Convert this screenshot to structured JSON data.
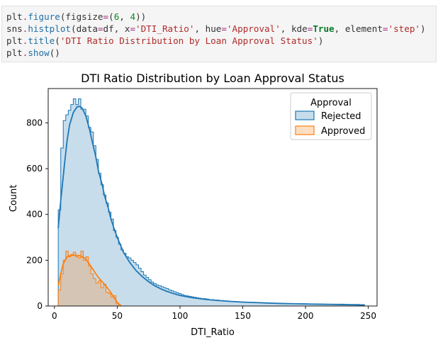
{
  "code_cell": {
    "lines": [
      [
        {
          "t": "plt",
          "c": "obj"
        },
        {
          "t": ".",
          "c": "op"
        },
        {
          "t": "figure",
          "c": "fn"
        },
        {
          "t": "(figsize",
          "c": "plain"
        },
        {
          "t": "=",
          "c": "op"
        },
        {
          "t": "(",
          "c": "plain"
        },
        {
          "t": "6",
          "c": "num"
        },
        {
          "t": ", ",
          "c": "plain"
        },
        {
          "t": "4",
          "c": "num"
        },
        {
          "t": "))",
          "c": "plain"
        }
      ],
      [
        {
          "t": "sns",
          "c": "obj"
        },
        {
          "t": ".",
          "c": "op"
        },
        {
          "t": "histplot",
          "c": "fn"
        },
        {
          "t": "(data",
          "c": "plain"
        },
        {
          "t": "=",
          "c": "op"
        },
        {
          "t": "df, x",
          "c": "plain"
        },
        {
          "t": "=",
          "c": "op"
        },
        {
          "t": "'DTI_Ratio'",
          "c": "str"
        },
        {
          "t": ", hue",
          "c": "plain"
        },
        {
          "t": "=",
          "c": "op"
        },
        {
          "t": "'Approval'",
          "c": "str"
        },
        {
          "t": ", kde",
          "c": "plain"
        },
        {
          "t": "=",
          "c": "op"
        },
        {
          "t": "True",
          "c": "kw"
        },
        {
          "t": ", element",
          "c": "plain"
        },
        {
          "t": "=",
          "c": "op"
        },
        {
          "t": "'step'",
          "c": "str"
        },
        {
          "t": ")",
          "c": "plain"
        }
      ],
      [
        {
          "t": "plt",
          "c": "obj"
        },
        {
          "t": ".",
          "c": "op"
        },
        {
          "t": "title",
          "c": "fn"
        },
        {
          "t": "(",
          "c": "plain"
        },
        {
          "t": "'DTI Ratio Distribution by Loan Approval Status'",
          "c": "str"
        },
        {
          "t": ")",
          "c": "plain"
        }
      ],
      [
        {
          "t": "plt",
          "c": "obj"
        },
        {
          "t": ".",
          "c": "op"
        },
        {
          "t": "show",
          "c": "fn"
        },
        {
          "t": "()",
          "c": "plain"
        }
      ]
    ]
  },
  "colors": {
    "code_obj": "#333333",
    "code_op": "#a2227a",
    "code_fn": "#1f6fa5",
    "code_num": "#0a8a1a",
    "code_str": "#b12a2a",
    "code_kw": "#0a7a2a",
    "rejected": "#1f77b4",
    "approved": "#ff7f0e"
  },
  "chart_data": {
    "type": "histogram",
    "title": "DTI Ratio Distribution by Loan Approval Status",
    "xlabel": "DTI_Ratio",
    "ylabel": "Count",
    "xlim": [
      -5,
      257
    ],
    "ylim": [
      0,
      950
    ],
    "xticks": [
      0,
      50,
      100,
      150,
      200,
      250
    ],
    "yticks": [
      0,
      200,
      400,
      600,
      800
    ],
    "grid": false,
    "legend": {
      "title": "Approval",
      "placement": "top-right"
    },
    "element": "step",
    "series": [
      {
        "name": "Rejected",
        "color": "#1f77b4",
        "bin_edges": [
          3,
          5,
          7,
          9,
          11,
          13,
          15,
          17,
          19,
          21,
          23,
          25,
          27,
          29,
          31,
          33,
          35,
          37,
          39,
          41,
          43,
          45,
          47,
          49,
          51,
          53,
          55,
          57,
          59,
          61,
          63,
          65,
          67,
          69,
          71,
          73,
          75,
          77,
          79,
          81,
          83,
          85,
          87,
          89,
          91,
          93,
          95,
          97,
          99,
          101,
          103,
          105,
          107,
          109,
          111,
          113,
          115,
          117,
          119,
          121,
          123,
          125,
          127,
          129,
          131,
          133,
          135,
          137,
          139,
          141,
          143,
          145,
          147,
          149,
          151,
          153,
          155,
          157,
          159,
          161,
          163,
          165,
          167,
          169,
          171,
          173,
          175,
          177,
          179,
          181,
          183,
          185,
          187,
          189,
          191,
          193,
          195,
          197,
          199,
          201,
          203,
          205,
          207,
          209,
          211,
          213,
          215,
          217,
          219,
          221,
          223,
          225,
          227,
          229,
          231,
          233,
          235,
          237,
          239,
          241,
          243,
          245,
          247
        ],
        "counts": [
          420,
          690,
          810,
          835,
          855,
          880,
          905,
          880,
          905,
          860,
          860,
          830,
          780,
          760,
          700,
          640,
          580,
          530,
          485,
          450,
          410,
          380,
          330,
          300,
          270,
          245,
          230,
          215,
          210,
          200,
          190,
          180,
          165,
          150,
          135,
          125,
          115,
          105,
          98,
          92,
          88,
          84,
          80,
          76,
          70,
          66,
          62,
          58,
          54,
          50,
          46,
          44,
          42,
          40,
          38,
          36,
          34,
          32,
          32,
          30,
          28,
          28,
          26,
          26,
          24,
          24,
          22,
          22,
          20,
          20,
          20,
          19,
          18,
          18,
          17,
          17,
          16,
          16,
          15,
          15,
          14,
          14,
          14,
          13,
          13,
          12,
          12,
          12,
          12,
          11,
          11,
          11,
          11,
          10,
          10,
          10,
          10,
          10,
          10,
          9,
          9,
          9,
          9,
          9,
          9,
          8,
          8,
          8,
          8,
          8,
          8,
          8,
          8,
          8,
          7,
          7,
          7,
          7,
          7,
          7,
          6,
          6
        ],
        "kde_x": [
          3,
          5,
          8,
          10,
          12,
          15,
          18,
          20,
          22,
          25,
          28,
          30,
          33,
          35,
          38,
          40,
          43,
          45,
          48,
          50,
          55,
          60,
          65,
          70,
          75,
          80,
          85,
          90,
          95,
          100,
          110,
          120,
          130,
          140,
          150,
          160,
          170,
          180,
          190,
          200,
          210,
          220,
          230,
          240,
          247
        ],
        "kde_y": [
          340,
          460,
          620,
          720,
          790,
          845,
          870,
          872,
          865,
          830,
          770,
          720,
          650,
          590,
          530,
          480,
          425,
          380,
          330,
          300,
          235,
          190,
          155,
          128,
          106,
          88,
          74,
          63,
          54,
          46,
          36,
          29,
          24,
          20,
          17,
          15,
          13,
          11,
          10,
          9,
          8,
          7,
          6,
          5,
          4
        ]
      },
      {
        "name": "Approved",
        "color": "#ff7f0e",
        "bin_edges": [
          3,
          5,
          7,
          9,
          11,
          13,
          15,
          17,
          19,
          21,
          23,
          25,
          27,
          29,
          31,
          33,
          35,
          37,
          39,
          41,
          43,
          45,
          47,
          49,
          51
        ],
        "counts": [
          70,
          140,
          200,
          240,
          215,
          225,
          235,
          215,
          210,
          240,
          200,
          215,
          175,
          140,
          120,
          100,
          110,
          80,
          95,
          60,
          55,
          40,
          45,
          10
        ],
        "kde_x": [
          3,
          5,
          7,
          10,
          13,
          16,
          20,
          24,
          27,
          30,
          33,
          36,
          39,
          42,
          45,
          48,
          51,
          53
        ],
        "kde_y": [
          90,
          140,
          185,
          215,
          222,
          222,
          220,
          210,
          190,
          165,
          140,
          118,
          100,
          80,
          58,
          32,
          10,
          2
        ]
      }
    ]
  }
}
